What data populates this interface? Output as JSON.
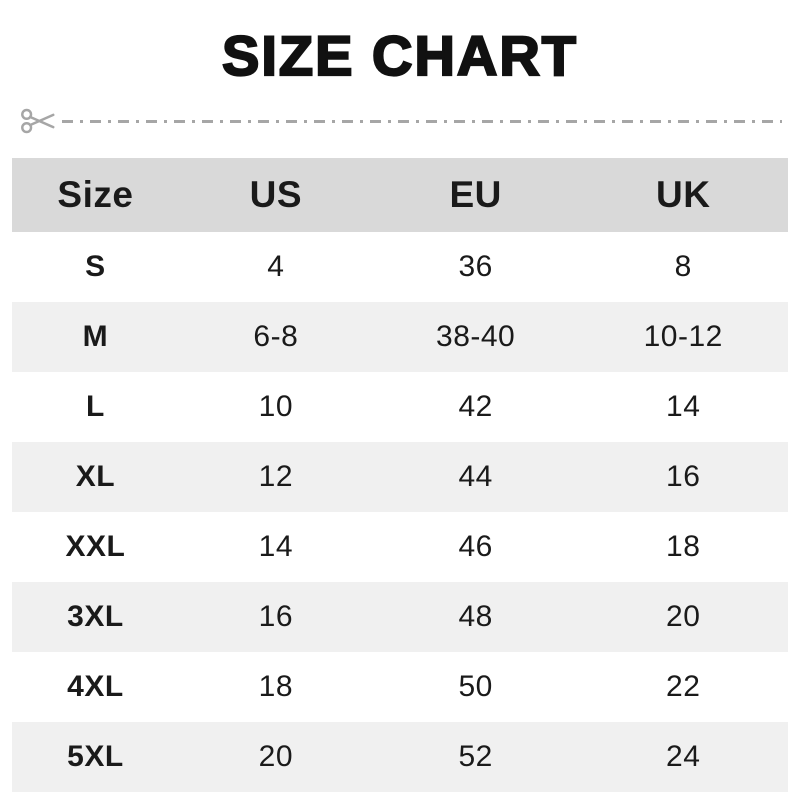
{
  "title": "SIZE CHART",
  "cut_line": {
    "icon": "scissors-icon"
  },
  "colors": {
    "header_bg": "#d9d9d9",
    "row_alt_bg": "#f0f0f0",
    "cut_line": "#a6a6a6",
    "text": "#1a1a1a",
    "title": "#111111"
  },
  "chart_data": {
    "type": "table",
    "title": "SIZE CHART",
    "columns": [
      "Size",
      "US",
      "EU",
      "UK"
    ],
    "rows": [
      [
        "S",
        "4",
        "36",
        "8"
      ],
      [
        "M",
        "6-8",
        "38-40",
        "10-12"
      ],
      [
        "L",
        "10",
        "42",
        "14"
      ],
      [
        "XL",
        "12",
        "44",
        "16"
      ],
      [
        "XXL",
        "14",
        "46",
        "18"
      ],
      [
        "3XL",
        "16",
        "48",
        "20"
      ],
      [
        "4XL",
        "18",
        "50",
        "22"
      ],
      [
        "5XL",
        "20",
        "52",
        "24"
      ]
    ],
    "layout_hints": {
      "header_background": "#d9d9d9",
      "alternating_row_background": "#f0f0f0",
      "first_column_bold": true,
      "grid": false
    }
  }
}
